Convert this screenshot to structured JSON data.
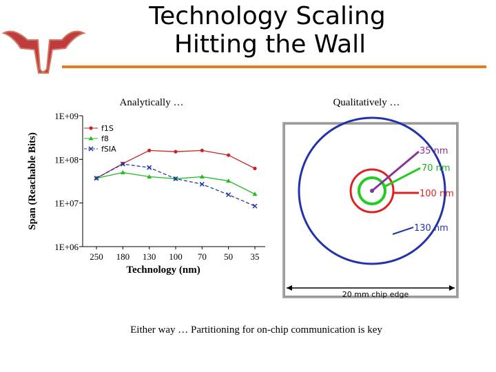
{
  "title": [
    "Technology Scaling",
    "Hitting the Wall"
  ],
  "left_heading": "Analytically …",
  "right_heading": "Qualitatively …",
  "caption": "Either way … Partitioning for on-chip communication is key",
  "diagram": {
    "labels": [
      "35 nm",
      "70 nm",
      "100 nm",
      "130 nm"
    ],
    "chip_edge": "20 mm chip edge"
  },
  "chart_data": {
    "type": "line",
    "categories": [
      "250",
      "180",
      "130",
      "100",
      "70",
      "50",
      "35"
    ],
    "x_label": "Technology (nm)",
    "y_label": "Span (Reachable Bits)",
    "log_y": true,
    "legend": "upper left",
    "ylim": [
      1000000,
      1000000000
    ],
    "yticks": [
      {
        "value": 1000000,
        "label": "1E+06"
      },
      {
        "value": 10000000,
        "label": "1E+07"
      },
      {
        "value": 100000000,
        "label": "1E+08"
      },
      {
        "value": 1000000000,
        "label": "1E+09"
      }
    ],
    "series": [
      {
        "name": "f1S",
        "color": "#cc2222",
        "marker": "circle",
        "values": [
          37000000,
          80000000,
          160000000,
          150000000,
          160000000,
          125000000,
          62000000
        ]
      },
      {
        "name": "f8",
        "color": "#22bb22",
        "marker": "triangle",
        "values": [
          37000000,
          50000000,
          40000000,
          36000000,
          40000000,
          32000000,
          16000000
        ]
      },
      {
        "name": "fSIA",
        "color": "#2233aa",
        "marker": "x",
        "dashed": true,
        "values": [
          37000000,
          78000000,
          65000000,
          36000000,
          27000000,
          15500000,
          8500000
        ]
      }
    ]
  }
}
